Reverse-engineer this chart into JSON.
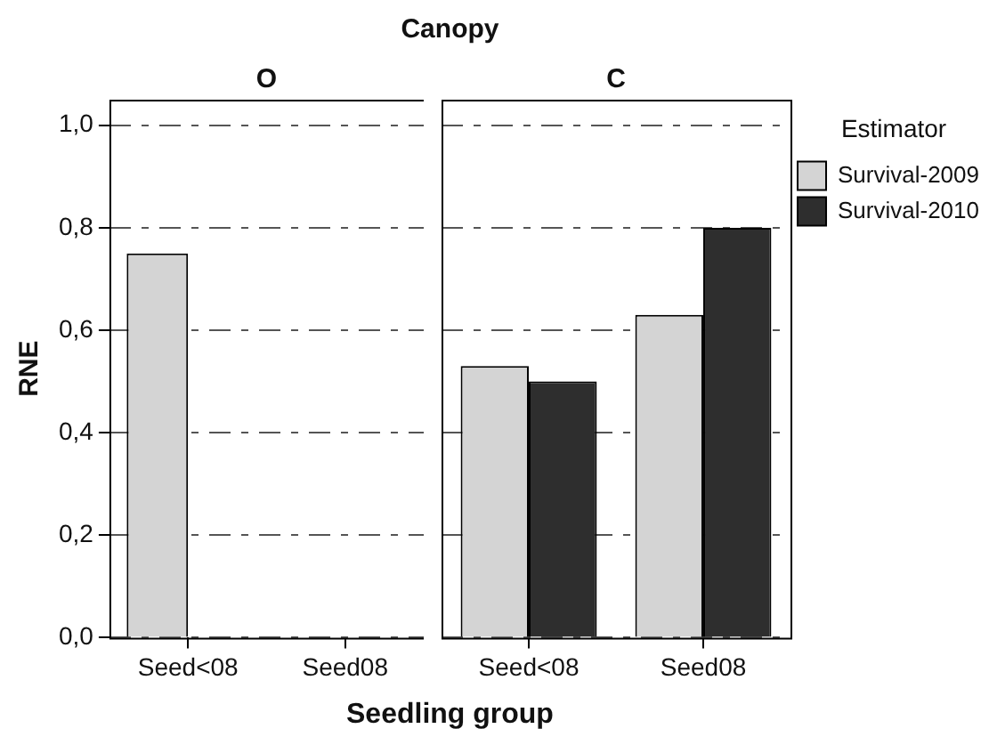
{
  "chart_data": [
    {
      "type": "bar",
      "title": "Canopy",
      "subtitle": "O",
      "xlabel": "Seedling group",
      "ylabel": "RNE",
      "categories": [
        "Seed<08",
        "Seed08"
      ],
      "series": [
        {
          "color": "#d4d4d4",
          "values": [
            0.75,
            0
          ]
        },
        {
          "color": "#2e2e2e",
          "values": [
            0,
            0
          ]
        }
      ],
      "ylim": [
        0,
        1.05
      ],
      "yticks": [
        {
          "value": 0,
          "label": "0,0"
        },
        {
          "value": 0.2,
          "label": "0,2"
        },
        {
          "value": 0.4,
          "label": "0,4"
        },
        {
          "value": 0.6,
          "label": "0,6"
        },
        {
          "value": 0.8,
          "label": "0,8"
        },
        {
          "value": 1,
          "label": "1,0"
        }
      ],
      "grid": "y",
      "legend": false
    },
    {
      "type": "bar",
      "subtitle": "C",
      "categories": [
        "Seed<08",
        "Seed08"
      ],
      "series": [
        {
          "name": "Survival-2009",
          "color": "#d4d4d4",
          "values": [
            0.53,
            0.63
          ]
        },
        {
          "name": "Survival-2010",
          "color": "#2e2e2e",
          "values": [
            0.5,
            0.8
          ]
        }
      ],
      "ylim": [
        0,
        1.05
      ],
      "yticks": [
        {
          "value": 0,
          "label": null
        },
        {
          "value": 0.2,
          "label": null
        },
        {
          "value": 0.4,
          "label": null
        },
        {
          "value": 0.6,
          "label": null
        },
        {
          "value": 0.8,
          "label": null
        },
        {
          "value": 1,
          "label": null
        }
      ],
      "grid": "y",
      "legend": "top right",
      "legend_title": "Estimator",
      "tick_labels": "x"
    }
  ]
}
